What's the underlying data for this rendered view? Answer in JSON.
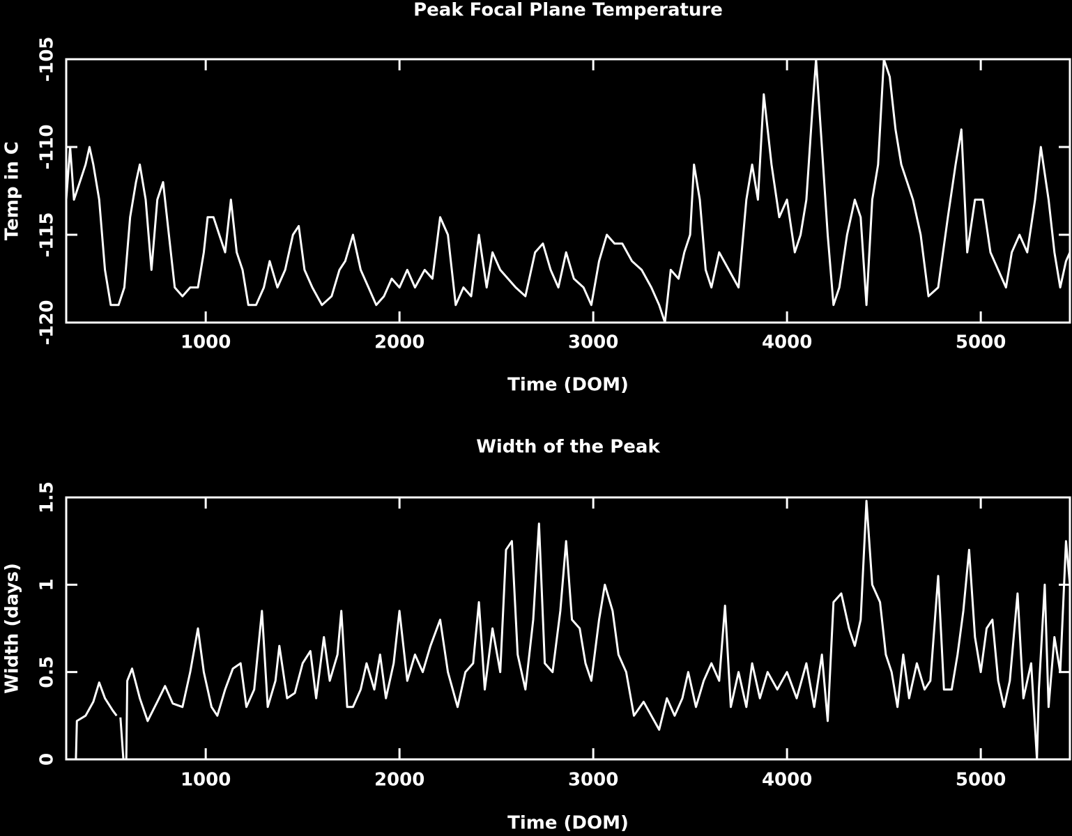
{
  "chart_data": [
    {
      "type": "line",
      "title": "Peak Focal Plane Temperature",
      "xlabel": "Time (DOM)",
      "ylabel": "Temp in C",
      "xlim": [
        280,
        5460
      ],
      "xticks": [
        1000,
        2000,
        3000,
        4000,
        5000
      ],
      "ylim": [
        -120,
        -105
      ],
      "yticks": [
        -120,
        -115,
        -110,
        -105
      ],
      "x": [
        280,
        300,
        320,
        350,
        380,
        400,
        420,
        450,
        480,
        510,
        550,
        580,
        610,
        640,
        660,
        690,
        720,
        750,
        780,
        810,
        840,
        880,
        920,
        960,
        990,
        1010,
        1040,
        1070,
        1100,
        1130,
        1160,
        1190,
        1220,
        1260,
        1300,
        1330,
        1370,
        1410,
        1450,
        1480,
        1510,
        1550,
        1600,
        1650,
        1690,
        1720,
        1760,
        1800,
        1840,
        1880,
        1920,
        1960,
        2000,
        2040,
        2080,
        2130,
        2170,
        2210,
        2250,
        2290,
        2330,
        2370,
        2410,
        2450,
        2480,
        2520,
        2560,
        2600,
        2650,
        2700,
        2740,
        2780,
        2820,
        2860,
        2900,
        2950,
        2990,
        3030,
        3070,
        3110,
        3150,
        3200,
        3250,
        3300,
        3340,
        3370,
        3400,
        3440,
        3470,
        3500,
        3520,
        3550,
        3580,
        3610,
        3650,
        3700,
        3750,
        3790,
        3820,
        3850,
        3880,
        3920,
        3960,
        4000,
        4040,
        4070,
        4100,
        4130,
        4150,
        4180,
        4210,
        4240,
        4270,
        4310,
        4350,
        4380,
        4410,
        4440,
        4470,
        4500,
        4530,
        4560,
        4590,
        4620,
        4650,
        4690,
        4730,
        4780,
        4830,
        4870,
        4900,
        4930,
        4970,
        5010,
        5050,
        5090,
        5130,
        5160,
        5200,
        5240,
        5280,
        5310,
        5350,
        5380,
        5410,
        5440,
        5460
      ],
      "series": [
        {
          "color": "#ffffff",
          "values": [
            -113,
            -110,
            -113,
            -112,
            -111,
            -110,
            -111,
            -113,
            -117,
            -119,
            -119,
            -118,
            -114,
            -112,
            -111,
            -113,
            -117,
            -113,
            -112,
            -115,
            -118,
            -118.5,
            -118,
            -118,
            -116,
            -114,
            -114,
            -115,
            -116,
            -113,
            -116,
            -117,
            -119,
            -119,
            -118,
            -116.5,
            -118,
            -117,
            -115,
            -114.5,
            -117,
            -118,
            -119,
            -118.5,
            -117,
            -116.5,
            -115,
            -117,
            -118,
            -119,
            -118.5,
            -117.5,
            -118,
            -117,
            -118,
            -117,
            -117.5,
            -114,
            -115,
            -119,
            -118,
            -118.5,
            -115,
            -118,
            -116,
            -117,
            -117.5,
            -118,
            -118.5,
            -116,
            -115.5,
            -117,
            -118,
            -116,
            -117.5,
            -118,
            -119,
            -116.5,
            -115,
            -115.5,
            -115.5,
            -116.5,
            -117,
            -118,
            -119,
            -120,
            -117,
            -117.5,
            -116,
            -115,
            -111,
            -113,
            -117,
            -118,
            -116,
            -117,
            -118,
            -113,
            -111,
            -113,
            -107,
            -111,
            -114,
            -113,
            -116,
            -115,
            -113,
            -108,
            -105,
            -110,
            -115,
            -119,
            -118,
            -115,
            -113,
            -114,
            -119,
            -113,
            -111,
            -105,
            -106,
            -109,
            -111,
            -112,
            -113,
            -115,
            -118.5,
            -118,
            -114,
            -111,
            -109,
            -116,
            -113,
            -113,
            -116,
            -117,
            -118,
            -116,
            -115,
            -116,
            -113,
            -110,
            -113,
            -116,
            -118,
            -116.5,
            -116
          ]
        }
      ]
    },
    {
      "type": "line",
      "title": "Width of the Peak",
      "xlabel": "Time (DOM)",
      "ylabel": "Width (days)",
      "xlim": [
        280,
        5460
      ],
      "xticks": [
        1000,
        2000,
        3000,
        4000,
        5000
      ],
      "ylim": [
        0,
        1.5
      ],
      "yticks": [
        0,
        0.5,
        1,
        1.5
      ],
      "x": [
        330,
        335,
        380,
        420,
        450,
        480,
        520,
        540,
        550,
        560,
        575,
        585,
        590,
        595,
        620,
        660,
        700,
        750,
        790,
        830,
        880,
        920,
        960,
        990,
        1030,
        1060,
        1100,
        1140,
        1180,
        1210,
        1250,
        1290,
        1320,
        1360,
        1380,
        1420,
        1460,
        1500,
        1540,
        1570,
        1610,
        1640,
        1680,
        1700,
        1730,
        1760,
        1800,
        1830,
        1870,
        1900,
        1930,
        1970,
        2000,
        2040,
        2080,
        2120,
        2160,
        2210,
        2250,
        2300,
        2340,
        2380,
        2410,
        2440,
        2480,
        2520,
        2550,
        2580,
        2610,
        2650,
        2690,
        2720,
        2750,
        2790,
        2830,
        2860,
        2890,
        2930,
        2960,
        2990,
        3030,
        3060,
        3100,
        3130,
        3170,
        3210,
        3260,
        3300,
        3340,
        3380,
        3420,
        3460,
        3490,
        3530,
        3570,
        3610,
        3650,
        3680,
        3710,
        3750,
        3790,
        3820,
        3860,
        3900,
        3950,
        4000,
        4050,
        4100,
        4140,
        4180,
        4210,
        4240,
        4280,
        4320,
        4350,
        4380,
        4410,
        4440,
        4480,
        4510,
        4540,
        4570,
        4600,
        4630,
        4670,
        4710,
        4740,
        4780,
        4810,
        4850,
        4880,
        4910,
        4940,
        4970,
        5000,
        5030,
        5060,
        5090,
        5120,
        5150,
        5190,
        5220,
        5260,
        5290,
        5300,
        5330,
        5350,
        5380,
        5410,
        5440,
        5460
      ],
      "series": [
        {
          "color": "#ffffff",
          "values": [
            0,
            0.22,
            0.25,
            0.33,
            0.44,
            0.35,
            0.28,
            0.25,
            null,
            0.24,
            0,
            null,
            0,
            0.45,
            0.52,
            0.35,
            0.22,
            0.33,
            0.42,
            0.32,
            0.3,
            0.5,
            0.75,
            0.5,
            0.3,
            0.25,
            0.4,
            0.52,
            0.55,
            0.3,
            0.4,
            0.85,
            0.3,
            0.45,
            0.65,
            0.35,
            0.38,
            0.55,
            0.62,
            0.35,
            0.7,
            0.45,
            0.6,
            0.85,
            0.3,
            0.3,
            0.4,
            0.55,
            0.4,
            0.6,
            0.35,
            0.55,
            0.85,
            0.45,
            0.6,
            0.5,
            0.65,
            0.8,
            0.5,
            0.3,
            0.5,
            0.55,
            0.9,
            0.4,
            0.75,
            0.5,
            1.2,
            1.25,
            0.6,
            0.4,
            0.8,
            1.35,
            0.55,
            0.5,
            0.85,
            1.25,
            0.8,
            0.75,
            0.55,
            0.45,
            0.8,
            1.0,
            0.85,
            0.6,
            0.5,
            0.25,
            0.33,
            0.25,
            0.17,
            0.35,
            0.25,
            0.35,
            0.5,
            0.3,
            0.45,
            0.55,
            0.45,
            0.88,
            0.3,
            0.5,
            0.3,
            0.55,
            0.35,
            0.5,
            0.4,
            0.5,
            0.35,
            0.55,
            0.3,
            0.6,
            0.22,
            0.9,
            0.95,
            0.75,
            0.65,
            0.8,
            1.48,
            1.0,
            0.9,
            0.6,
            0.5,
            0.3,
            0.6,
            0.35,
            0.55,
            0.4,
            0.45,
            1.05,
            0.4,
            0.4,
            0.6,
            0.85,
            1.2,
            0.7,
            0.5,
            0.75,
            0.8,
            0.45,
            0.3,
            0.45,
            0.95,
            0.35,
            0.55,
            0,
            0.4,
            1.0,
            0.3,
            0.7,
            0.5,
            1.25,
            1.0
          ]
        }
      ]
    }
  ]
}
